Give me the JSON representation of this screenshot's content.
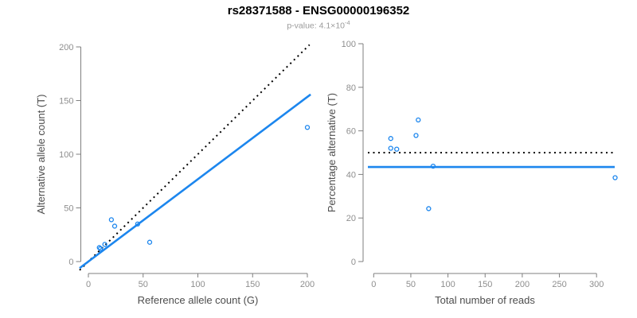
{
  "header": {
    "title": "rs28371588 - ENSG00000196352",
    "subtitle_text": "p-value: 4.1×10",
    "subtitle_exponent": "-4"
  },
  "colors": {
    "accent_blue": "#1C86EE",
    "dotted_black": "#000000",
    "axis_gray": "#7f7f7f",
    "tick_label_gray": "#8e8e8e",
    "axis_title_gray": "#4d4d4d",
    "subtitle_gray": "#9b9b9b"
  },
  "chart_data": [
    {
      "type": "scatter",
      "panel": "left",
      "xlabel": "Reference allele count (G)",
      "ylabel": "Alternative allele count (T)",
      "xlim": [
        0,
        200
      ],
      "ylim": [
        0,
        200
      ],
      "xticks": [
        0,
        50,
        100,
        150,
        200
      ],
      "yticks": [
        0,
        50,
        100,
        150,
        200
      ],
      "grid": false,
      "marker": "open-circle",
      "points": [
        [
          10,
          13
        ],
        [
          11,
          12
        ],
        [
          15,
          16
        ],
        [
          21,
          39
        ],
        [
          24,
          33
        ],
        [
          45,
          35
        ],
        [
          56,
          18
        ],
        [
          200,
          125
        ]
      ],
      "lines": [
        {
          "name": "identity-line",
          "style": "dotted",
          "color": "#000000",
          "from": [
            -8,
            -8
          ],
          "to": [
            202,
            202
          ]
        },
        {
          "name": "regression-line",
          "style": "solid",
          "color": "#1C86EE",
          "from": [
            -8,
            -6.1
          ],
          "to": [
            203,
            155.7
          ]
        }
      ]
    },
    {
      "type": "scatter",
      "panel": "right",
      "xlabel": "Total number of reads",
      "ylabel": "Percentage alternative (T)",
      "xlim": [
        0,
        300
      ],
      "ylim": [
        0,
        100
      ],
      "xticks": [
        0,
        50,
        100,
        150,
        200,
        250,
        300
      ],
      "yticks": [
        0,
        20,
        40,
        60,
        80,
        100
      ],
      "grid": false,
      "marker": "open-circle",
      "points": [
        [
          23,
          56.5
        ],
        [
          23,
          52
        ],
        [
          31,
          51.6
        ],
        [
          57,
          57.9
        ],
        [
          60,
          65
        ],
        [
          74,
          24.3
        ],
        [
          80,
          43.8
        ],
        [
          325,
          38.5
        ]
      ],
      "lines": [
        {
          "name": "expected-50pct-line",
          "style": "dotted",
          "color": "#000000",
          "y": 50
        },
        {
          "name": "observed-pct-line",
          "style": "solid",
          "color": "#1C86EE",
          "y": 43.4
        }
      ]
    }
  ]
}
